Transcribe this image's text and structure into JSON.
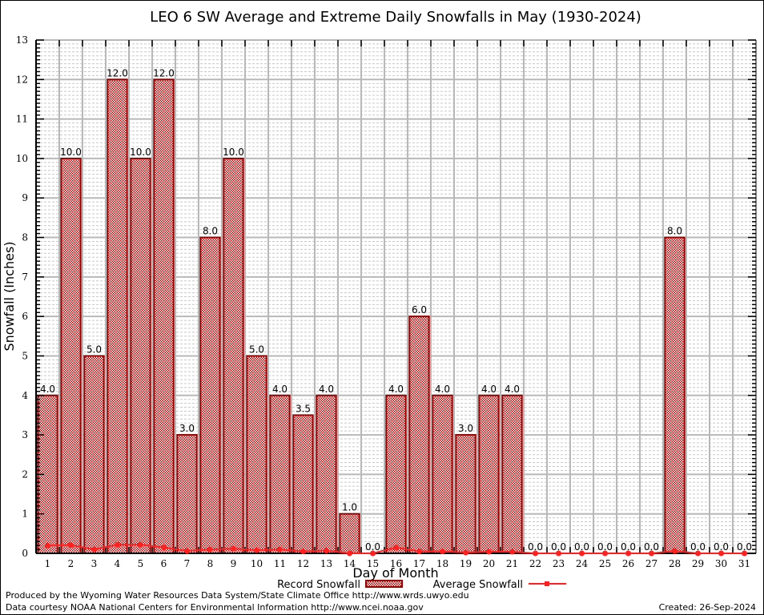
{
  "chart_data": {
    "type": "bar",
    "title": "LEO 6 SW Average and Extreme Daily Snowfalls in May (1930-2024)",
    "xlabel": "Day of Month",
    "ylabel": "Snowfall (Inches)",
    "ylim": [
      0,
      13
    ],
    "yticks": [
      0,
      1,
      2,
      3,
      4,
      5,
      6,
      7,
      8,
      9,
      10,
      11,
      12,
      13
    ],
    "y_minor_step": 0.1,
    "grid": true,
    "categories": [
      "1",
      "2",
      "3",
      "4",
      "5",
      "6",
      "7",
      "8",
      "9",
      "10",
      "11",
      "12",
      "13",
      "14",
      "15",
      "16",
      "17",
      "18",
      "19",
      "20",
      "21",
      "22",
      "23",
      "24",
      "25",
      "26",
      "27",
      "28",
      "29",
      "30",
      "31"
    ],
    "series": [
      {
        "name": "Record Snowfall",
        "type": "bar",
        "values": [
          4.0,
          10.0,
          5.0,
          12.0,
          10.0,
          12.0,
          3.0,
          8.0,
          10.0,
          5.0,
          4.0,
          3.5,
          4.0,
          1.0,
          0.0,
          4.0,
          6.0,
          4.0,
          3.0,
          4.0,
          4.0,
          0.0,
          0.0,
          0.0,
          0.0,
          0.0,
          0.0,
          8.0,
          0.0,
          0.0,
          0.0
        ],
        "labels": [
          "4.0",
          "10.0",
          "5.0",
          "12.0",
          "10.0",
          "12.0",
          "3.0",
          "8.0",
          "10.0",
          "5.0",
          "4.0",
          "3.5",
          "4.0",
          "1.0",
          "0.0",
          "4.0",
          "6.0",
          "4.0",
          "3.0",
          "4.0",
          "4.0",
          "0.0",
          "0.0",
          "0.0",
          "0.0",
          "0.0",
          "0.0",
          "8.0",
          "0.0",
          "0.0",
          "0.0"
        ],
        "color": "#990000",
        "fill": "#cc0000"
      },
      {
        "name": "Average Snowfall",
        "type": "line",
        "values": [
          0.2,
          0.21,
          0.1,
          0.22,
          0.22,
          0.15,
          0.06,
          0.1,
          0.12,
          0.08,
          0.1,
          0.05,
          0.07,
          0.0,
          0.0,
          0.15,
          0.05,
          0.05,
          0.02,
          0.04,
          0.04,
          0.0,
          0.0,
          0.0,
          0.0,
          0.0,
          0.0,
          0.06,
          0.0,
          0.0,
          0.0
        ],
        "color": "#ff2020"
      }
    ],
    "legend": {
      "placement": "bottom-center",
      "entries": [
        "Record Snowfall",
        "Average Snowfall"
      ]
    }
  },
  "footer": {
    "line1": "Produced by the Wyoming Water Resources Data System/State Climate Office http://www.wrds.uwyo.edu",
    "line2": "Data courtesy NOAA National Centers for Environmental Information http://www.ncei.noaa.gov",
    "created": "Created: 26-Sep-2024"
  }
}
